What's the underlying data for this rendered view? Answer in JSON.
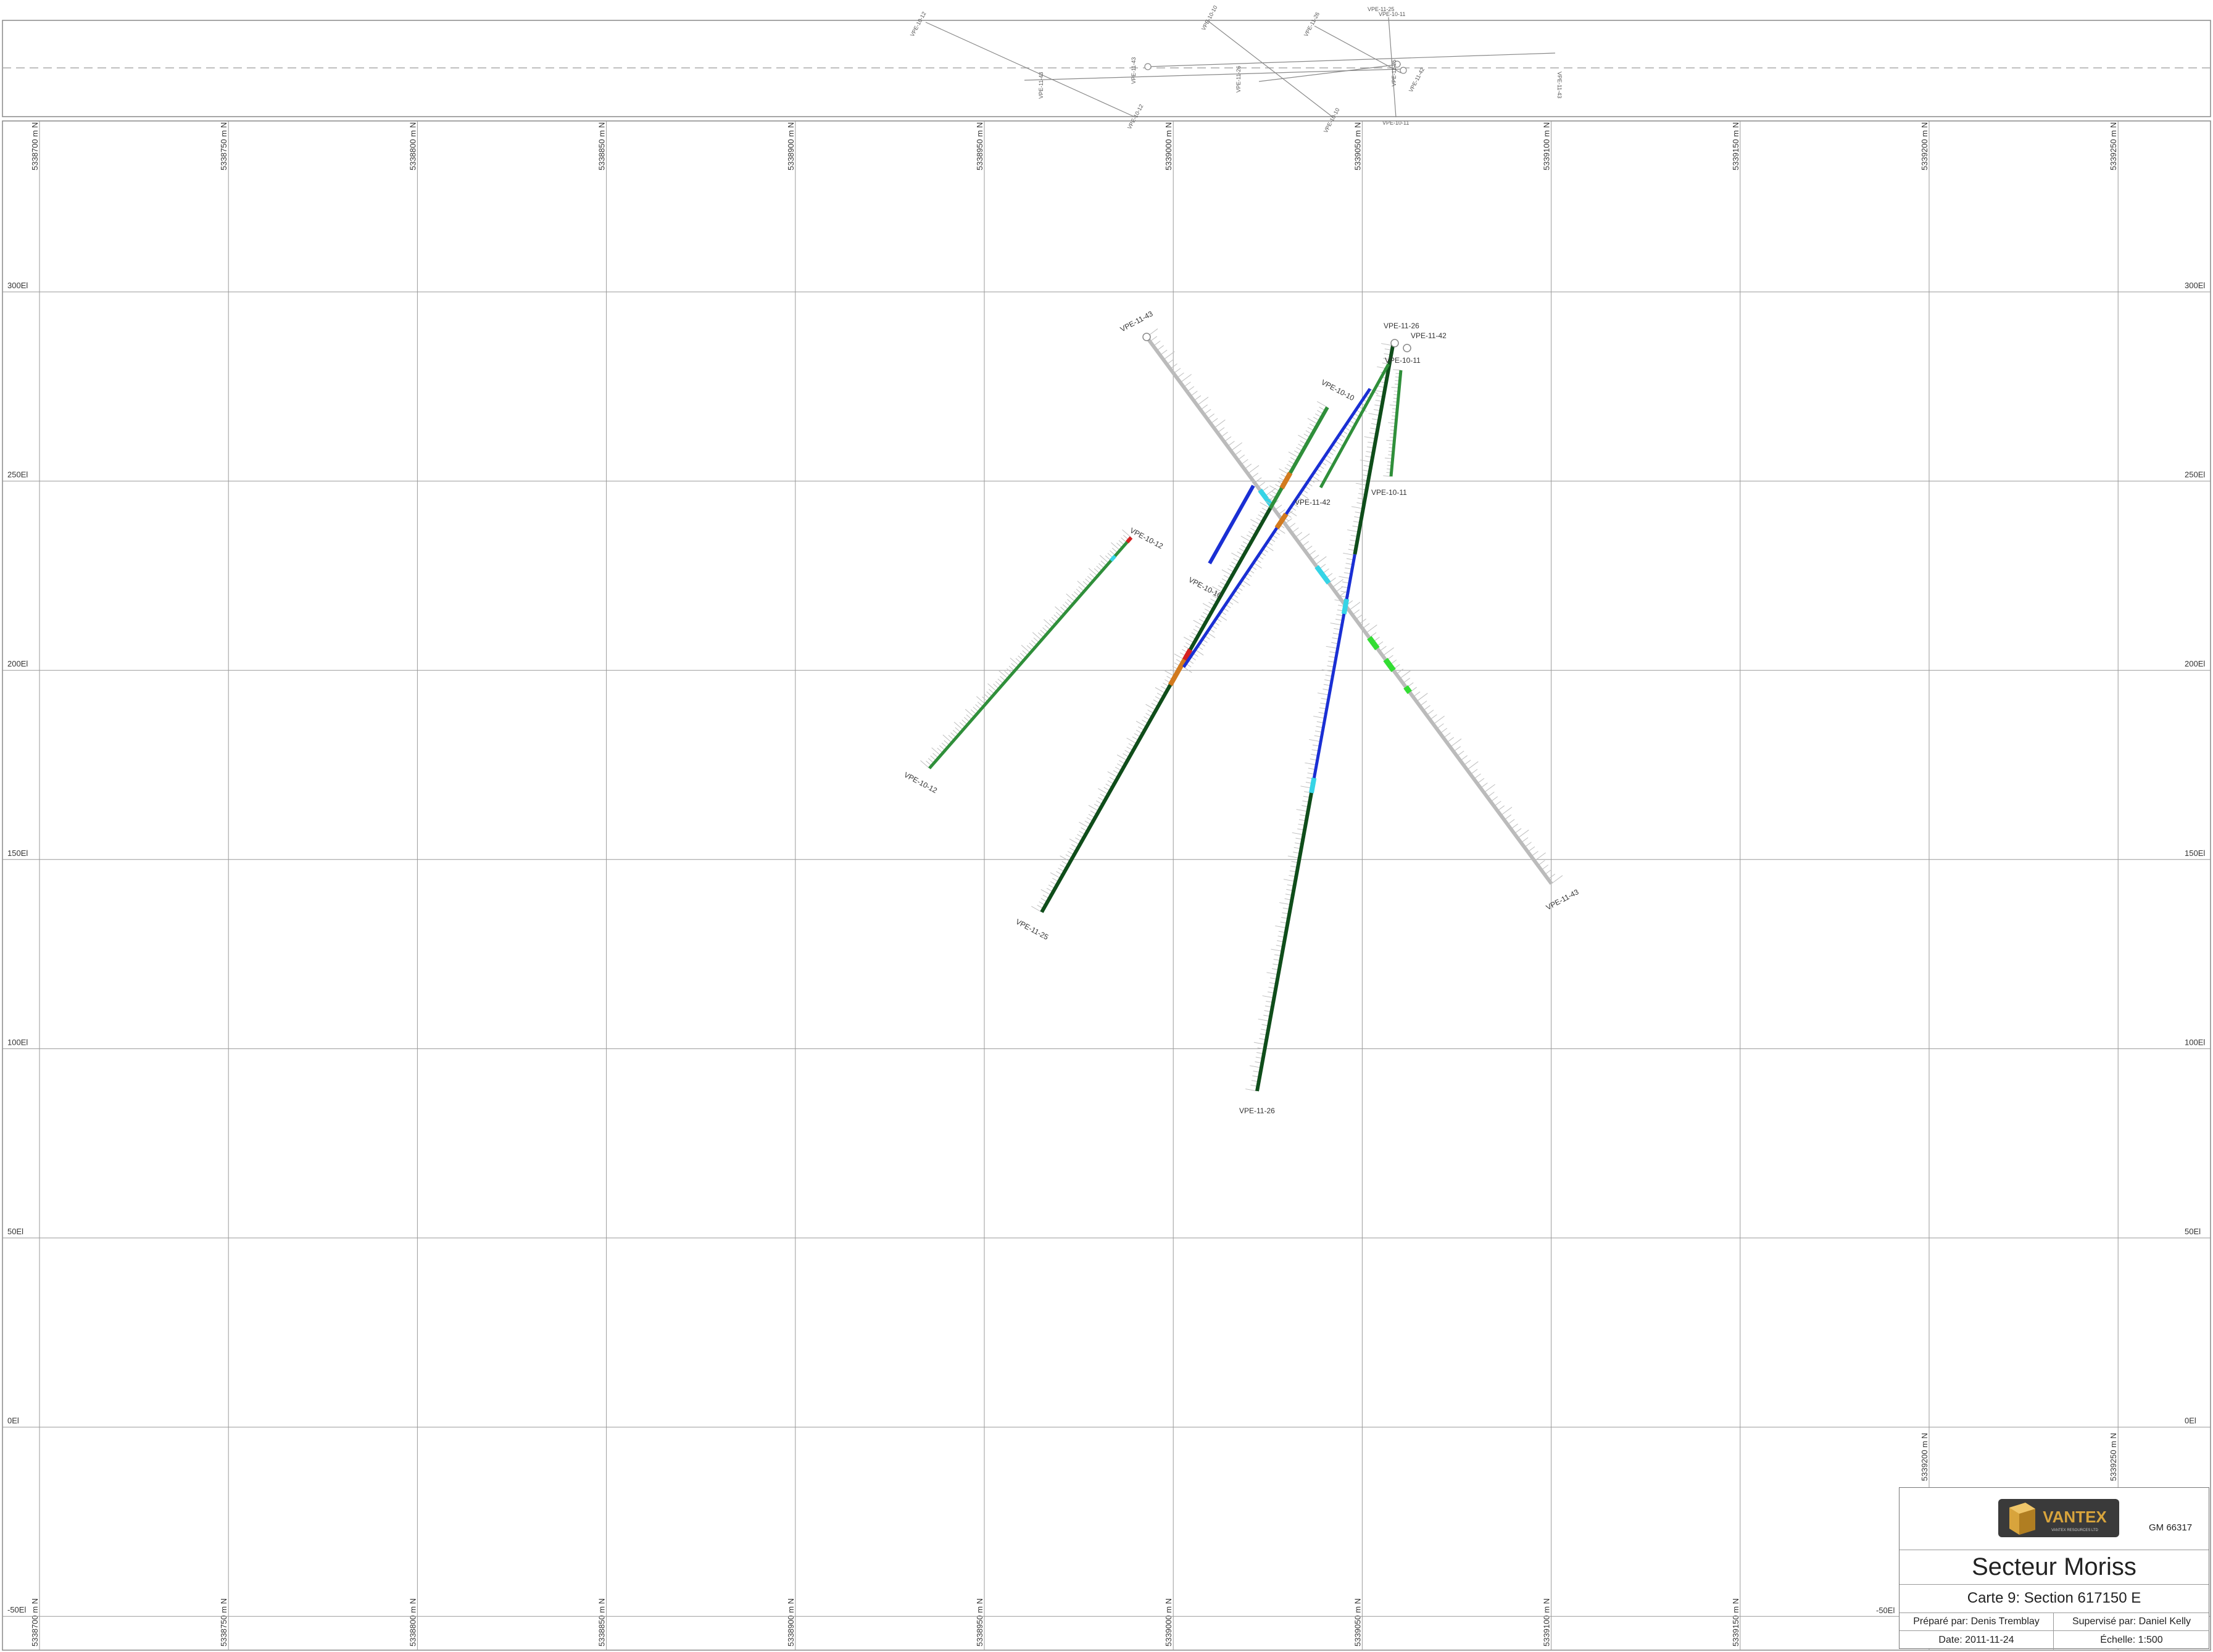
{
  "colors": {
    "grid": "#9a9a9a",
    "trace_green": "#2f8f3a",
    "trace_darkgreen": "#0f4d1a",
    "trace_blue": "#1a2fd4",
    "ticks_gray": "#bdbdbd",
    "cyan": "#36d4e6",
    "lime": "#33dd33",
    "orange": "#d27a1e",
    "red": "#d42020",
    "logo_dark": "#3a3a3a",
    "logo_gold": "#d8a43c"
  },
  "grid": {
    "northings": [
      "5338700 m N",
      "5338750 m N",
      "5338800 m N",
      "5338850 m N",
      "5338900 m N",
      "5338950 m N",
      "5339000 m N",
      "5339050 m N",
      "5339100 m N",
      "5339150 m N",
      "5339200 m N",
      "5339250 m N"
    ],
    "elevations": [
      "300El",
      "250El",
      "200El",
      "150El",
      "100El",
      "50El",
      "0El",
      "-50El"
    ]
  },
  "plan_view": {
    "labels": [
      "VPE-10-12",
      "VPE-10-10",
      "VPE-11-43",
      "VPE-11-25",
      "VPE-11-26",
      "VPE-11-42",
      "VPE-10-11",
      "VPE-11-43",
      "VPE-11-25",
      "VPE-10-12",
      "VPE-10-10",
      "VPE-10-11",
      "VPE-11-26",
      "VPE-11-43"
    ]
  },
  "drill_holes": [
    {
      "id": "VPE-11-43",
      "label_collar": "VPE-11-43",
      "label_end": "VPE-11-43"
    },
    {
      "id": "VPE-10-12",
      "label_collar": "VPE-10-12",
      "label_end": "VPE-10-12"
    },
    {
      "id": "VPE-10-10",
      "label_collar": "VPE-10-10",
      "label_end": "VPE-10-10"
    },
    {
      "id": "VPE-11-25",
      "label_collar": "VPE-11-25",
      "label_end": "VPE-11-25"
    },
    {
      "id": "VPE-11-26",
      "label_collar": "VPE-11-26",
      "label_end": "VPE-11-26"
    },
    {
      "id": "VPE-11-42",
      "label_collar": "VPE-11-42",
      "label_end": "VPE-11-42"
    },
    {
      "id": "VPE-10-11",
      "label_collar": "VPE-10-11",
      "label_end": "VPE-10-11"
    }
  ],
  "title_block": {
    "logo_text": "VANTEX",
    "logo_sub": "VANTEX RESOURCES LTD",
    "gm": "GM 66317",
    "sector": "Secteur Moriss",
    "carte": "Carte 9: Section 617150 E",
    "prepared_by": "Préparé par: Denis Tremblay",
    "supervised_by": "Supervisé par: Daniel Kelly",
    "date": "Date: 2011-11-24",
    "scale": "Échelle: 1:500"
  }
}
